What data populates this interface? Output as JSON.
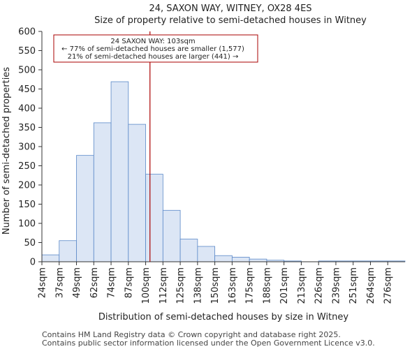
{
  "chart_data": {
    "type": "bar",
    "title": "24, SAXON WAY, WITNEY, OX28 4ES",
    "subtitle": "Size of property relative to semi-detached houses in Witney",
    "xlabel": "Distribution of semi-detached houses by size in Witney",
    "ylabel": "Number of semi-detached properties",
    "ylim": [
      0,
      600
    ],
    "yticks": [
      0,
      50,
      100,
      150,
      200,
      250,
      300,
      350,
      400,
      450,
      500,
      550,
      600
    ],
    "categories": [
      "24sqm",
      "37sqm",
      "49sqm",
      "62sqm",
      "74sqm",
      "87sqm",
      "100sqm",
      "112sqm",
      "125sqm",
      "138sqm",
      "150sqm",
      "163sqm",
      "175sqm",
      "188sqm",
      "201sqm",
      "213sqm",
      "226sqm",
      "239sqm",
      "251sqm",
      "264sqm",
      "276sqm"
    ],
    "values": [
      18,
      55,
      277,
      362,
      469,
      358,
      228,
      134,
      59,
      40,
      16,
      12,
      7,
      4,
      2,
      0,
      2,
      2,
      2,
      2,
      2
    ],
    "marker": {
      "value": 103,
      "unit": "sqm",
      "color": "#aa0000"
    },
    "annotation": {
      "line1": "24 SAXON WAY: 103sqm",
      "line2": "← 77% of semi-detached houses are smaller (1,577)",
      "line3": "21% of semi-detached houses are larger (441) →"
    },
    "colors": {
      "bar_fill": "#dce6f5",
      "bar_edge": "#5a88c8",
      "axis": "#333333"
    }
  },
  "footer": {
    "line1": "Contains HM Land Registry data © Crown copyright and database right 2025.",
    "line2": "Contains public sector information licensed under the Open Government Licence v3.0."
  }
}
